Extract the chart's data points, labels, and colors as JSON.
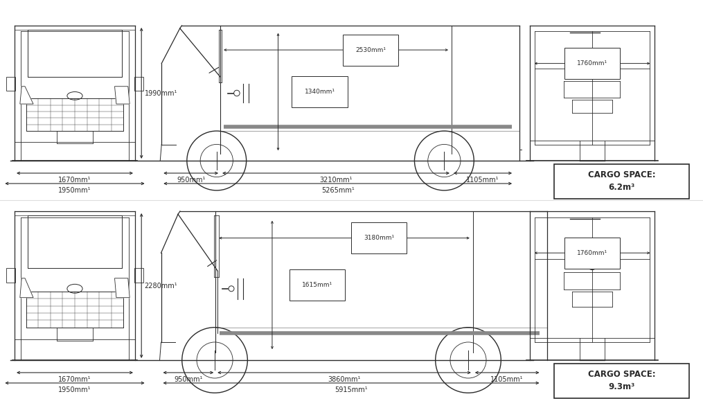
{
  "bg_color": "#ffffff",
  "line_color": "#2a2a2a",
  "dim_color": "#2a2a2a",
  "fig_width": 10.15,
  "fig_height": 5.79,
  "top_row": {
    "height_label": "1990mm¹",
    "width_inner_label": "1670mm¹",
    "width_outer_label": "1950mm¹",
    "front_overhang_label": "950mm¹",
    "cargo_length_label": "3210mm¹",
    "rear_overhang_label": "1105mm¹",
    "total_length_label": "5265mm¹",
    "cargo_width_label": "2530mm¹",
    "cargo_height_label": "1340mm¹",
    "rear_width_label": "1760mm¹",
    "cargo_space_line1": "CARGO SPACE:",
    "cargo_space_line2": "6.2m³"
  },
  "bottom_row": {
    "height_label": "2280mm¹",
    "width_inner_label": "1670mm¹",
    "width_outer_label": "1950mm¹",
    "front_overhang_label": "950mm¹",
    "cargo_length_label": "3860mm¹",
    "rear_overhang_label": "1105mm¹",
    "total_length_label": "5915mm¹",
    "cargo_width_label": "3180mm¹",
    "cargo_height_label": "1615mm¹",
    "rear_width_label": "1760mm¹",
    "cargo_space_line1": "CARGO SPACE:",
    "cargo_space_line2": "9.3m³"
  }
}
